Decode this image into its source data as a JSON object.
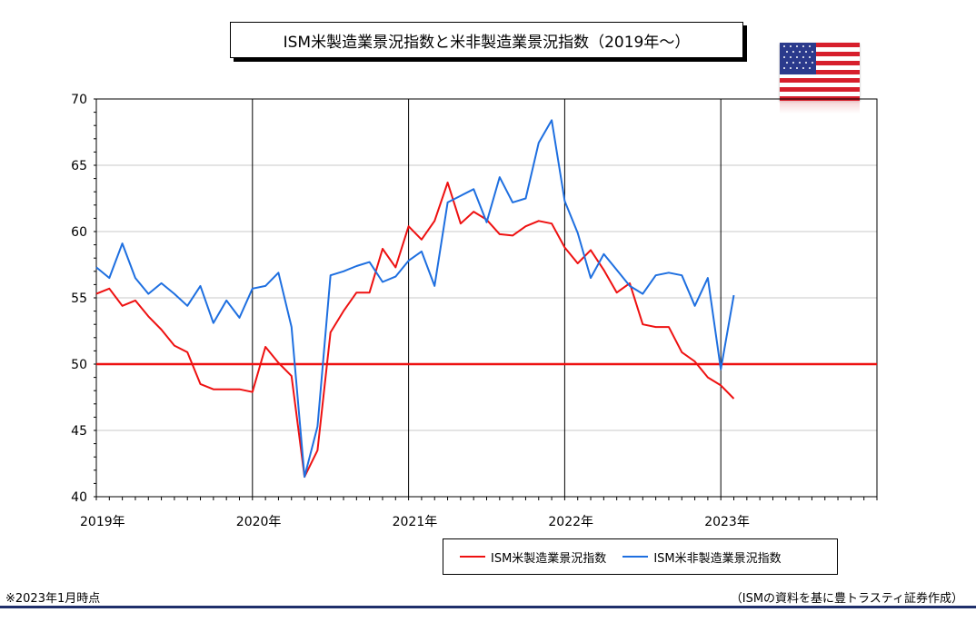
{
  "title": "ISM米製造業景況指数と米非製造業景況指数（2019年～）",
  "footnote_left": "※2023年1月時点",
  "footnote_right": "（ISMの資料を基に豊トラスティ証券作成）",
  "flag_icon": "us-flag-icon",
  "colors": {
    "manufacturing": "#ee1111",
    "non_manufacturing": "#1e6fe0",
    "reference_line": "#ee1111",
    "footer_rule": "#1f2f6b"
  },
  "chart_data": {
    "type": "line",
    "title": "ISM米製造業景況指数と米非製造業景況指数（2019年～）",
    "xlabel": "",
    "ylabel": "",
    "ylim": [
      40,
      70
    ],
    "yticks": [
      40,
      45,
      50,
      55,
      60,
      65,
      70
    ],
    "x_start": "2019-01",
    "x_end": "2023-12",
    "year_labels": [
      "2019年",
      "2020年",
      "2021年",
      "2022年",
      "2023年"
    ],
    "grid": true,
    "legend_position": "bottom-right",
    "reference_line": {
      "y": 50
    },
    "series": [
      {
        "name": "ISM米製造業景況指数",
        "color": "#ee1111",
        "start": "2019-01",
        "values": [
          55.3,
          55.7,
          54.4,
          54.8,
          53.6,
          52.6,
          51.4,
          50.9,
          48.5,
          48.1,
          48.1,
          48.1,
          47.9,
          51.3,
          50.1,
          49.1,
          41.5,
          43.5,
          52.4,
          54.0,
          55.4,
          55.4,
          58.7,
          57.3,
          60.4,
          59.4,
          60.8,
          63.7,
          60.6,
          61.5,
          60.9,
          59.8,
          59.7,
          60.4,
          60.8,
          60.6,
          58.8,
          57.6,
          58.6,
          57.1,
          55.4,
          56.1,
          53.0,
          52.8,
          52.8,
          50.9,
          50.2,
          49.0,
          48.4,
          47.4
        ]
      },
      {
        "name": "ISM米非製造業景況指数",
        "color": "#1e6fe0",
        "start": "2019-01",
        "values": [
          57.3,
          56.5,
          59.1,
          56.5,
          55.3,
          56.1,
          55.3,
          54.4,
          55.9,
          53.1,
          54.8,
          53.5,
          55.7,
          55.9,
          56.9,
          52.8,
          41.5,
          45.3,
          56.7,
          57.0,
          57.4,
          57.7,
          56.2,
          56.6,
          57.8,
          58.5,
          55.9,
          62.2,
          62.7,
          63.2,
          60.7,
          64.1,
          62.2,
          62.5,
          66.7,
          68.4,
          62.3,
          59.9,
          56.5,
          58.3,
          57.1,
          55.9,
          55.3,
          56.7,
          56.9,
          56.7,
          54.4,
          56.5,
          49.6,
          55.2
        ]
      }
    ]
  }
}
